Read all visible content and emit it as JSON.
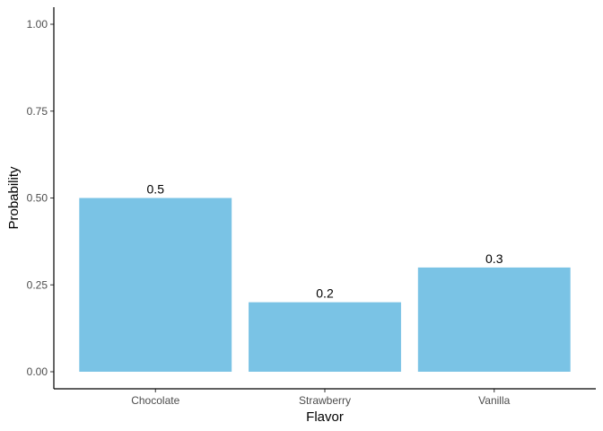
{
  "chart_data": {
    "type": "bar",
    "categories": [
      "Chocolate",
      "Strawberry",
      "Vanilla"
    ],
    "values": [
      0.5,
      0.2,
      0.3
    ],
    "data_labels": [
      "0.5",
      "0.2",
      "0.3"
    ],
    "xlabel": "Flavor",
    "ylabel": "Probability",
    "ylim": [
      0,
      1
    ],
    "yticks": [
      0,
      0.25,
      0.5,
      0.75,
      1.0
    ],
    "ytick_labels": [
      "0.00",
      "0.25",
      "0.50",
      "0.75",
      "1.00"
    ],
    "grid": false,
    "legend": "none",
    "bar_color": "#7AC3E5"
  }
}
